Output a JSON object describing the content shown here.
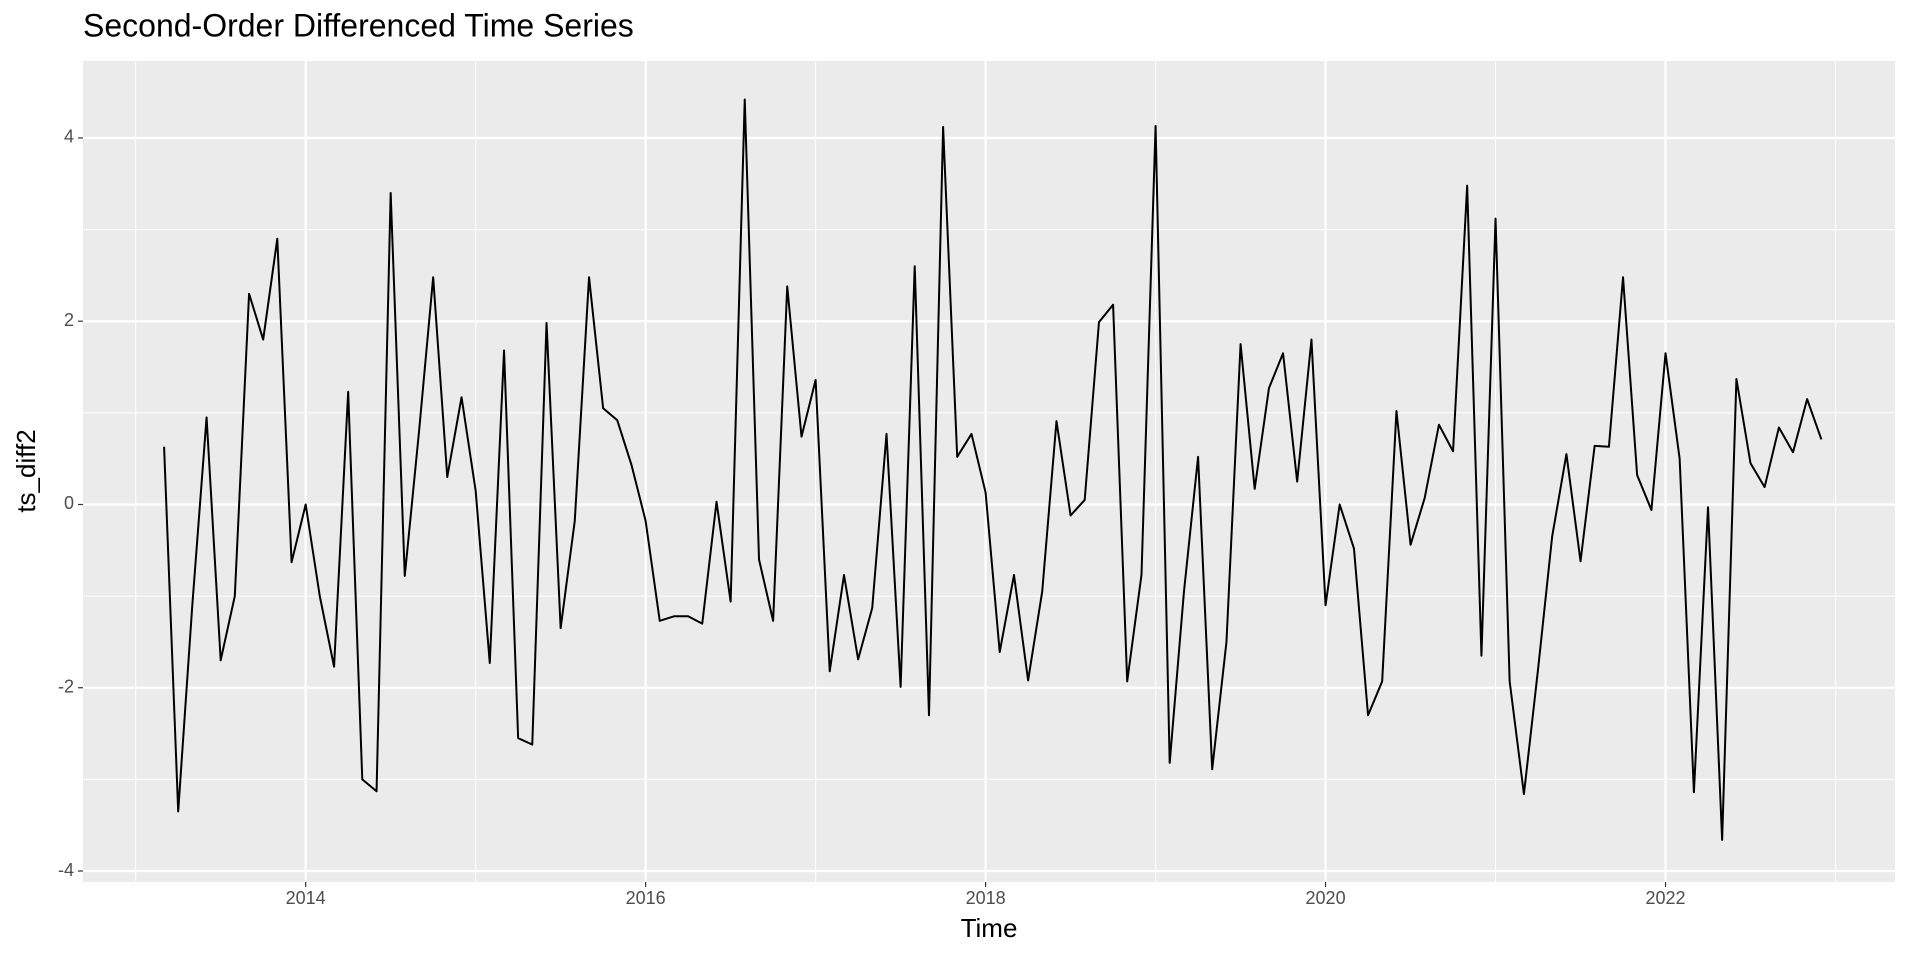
{
  "chart_data": {
    "type": "line",
    "title": "Second-Order Differenced Time Series",
    "xlabel": "Time",
    "ylabel": "ts_diff2",
    "x": [
      2013.167,
      2013.25,
      2013.333,
      2013.417,
      2013.5,
      2013.583,
      2013.667,
      2013.75,
      2013.833,
      2013.917,
      2014,
      2014.083,
      2014.167,
      2014.25,
      2014.333,
      2014.417,
      2014.5,
      2014.583,
      2014.667,
      2014.75,
      2014.833,
      2014.917,
      2015,
      2015.083,
      2015.167,
      2015.25,
      2015.333,
      2015.417,
      2015.5,
      2015.583,
      2015.667,
      2015.75,
      2015.833,
      2015.917,
      2016,
      2016.083,
      2016.167,
      2016.25,
      2016.333,
      2016.417,
      2016.5,
      2016.583,
      2016.667,
      2016.75,
      2016.833,
      2016.917,
      2017,
      2017.083,
      2017.167,
      2017.25,
      2017.333,
      2017.417,
      2017.5,
      2017.583,
      2017.667,
      2017.75,
      2017.833,
      2017.917,
      2018,
      2018.083,
      2018.167,
      2018.25,
      2018.333,
      2018.417,
      2018.5,
      2018.583,
      2018.667,
      2018.75,
      2018.833,
      2018.917,
      2019,
      2019.083,
      2019.167,
      2019.25,
      2019.333,
      2019.417,
      2019.5,
      2019.583,
      2019.667,
      2019.75,
      2019.833,
      2019.917,
      2020,
      2020.083,
      2020.167,
      2020.25,
      2020.333,
      2020.417,
      2020.5,
      2020.583,
      2020.667,
      2020.75,
      2020.833,
      2020.917,
      2021,
      2021.083,
      2021.167,
      2021.25,
      2021.333,
      2021.417,
      2021.5,
      2021.583,
      2021.667,
      2021.75,
      2021.833,
      2021.917,
      2022,
      2022.083,
      2022.167,
      2022.25,
      2022.333,
      2022.417,
      2022.5,
      2022.583,
      2022.667,
      2022.75,
      2022.833,
      2022.917
    ],
    "series": [
      {
        "color": "#000000",
        "values": [
          0.63,
          -3.35,
          -1.1,
          0.95,
          -1.7,
          -1.0,
          2.3,
          1.8,
          2.9,
          -0.63,
          0.0,
          -1.0,
          -1.77,
          1.23,
          -3.0,
          -3.13,
          3.4,
          -0.78,
          0.8,
          2.48,
          0.3,
          1.17,
          0.15,
          -1.73,
          1.68,
          -2.55,
          -2.62,
          1.98,
          -1.35,
          -0.18,
          2.48,
          1.05,
          0.92,
          0.43,
          -0.18,
          -1.27,
          -1.22,
          -1.22,
          -1.3,
          0.03,
          -1.06,
          4.42,
          -0.6,
          -1.27,
          2.38,
          0.74,
          1.36,
          -1.82,
          -0.77,
          -1.69,
          -1.13,
          0.77,
          -1.99,
          2.6,
          -2.3,
          4.12,
          0.52,
          0.77,
          0.13,
          -1.61,
          -0.77,
          -1.92,
          -0.95,
          0.91,
          -0.12,
          0.05,
          1.99,
          2.18,
          -1.93,
          -0.77,
          4.13,
          -2.82,
          -0.95,
          0.52,
          -2.89,
          -1.5,
          1.75,
          0.17,
          1.27,
          1.65,
          0.25,
          1.8,
          -1.1,
          0.0,
          -0.48,
          -2.3,
          -1.93,
          1.02,
          -0.44,
          0.07,
          0.87,
          0.58,
          3.48,
          -1.65,
          3.12,
          -1.93,
          -3.16,
          -1.8,
          -0.35,
          0.55,
          -0.62,
          0.64,
          0.63,
          2.48,
          0.32,
          -0.06,
          1.65,
          0.5,
          -3.14,
          -0.03,
          -3.66,
          1.37,
          0.45,
          0.19,
          0.84,
          0.57,
          1.15,
          0.71
        ]
      }
    ],
    "xlim": [
      2012.69,
      2023.35
    ],
    "xticks": [
      2014,
      2016,
      2018,
      2020,
      2022
    ],
    "ylim": [
      -4.12,
      4.84
    ],
    "yticks": [
      -4,
      -2,
      0,
      2,
      4
    ],
    "grid": true
  }
}
